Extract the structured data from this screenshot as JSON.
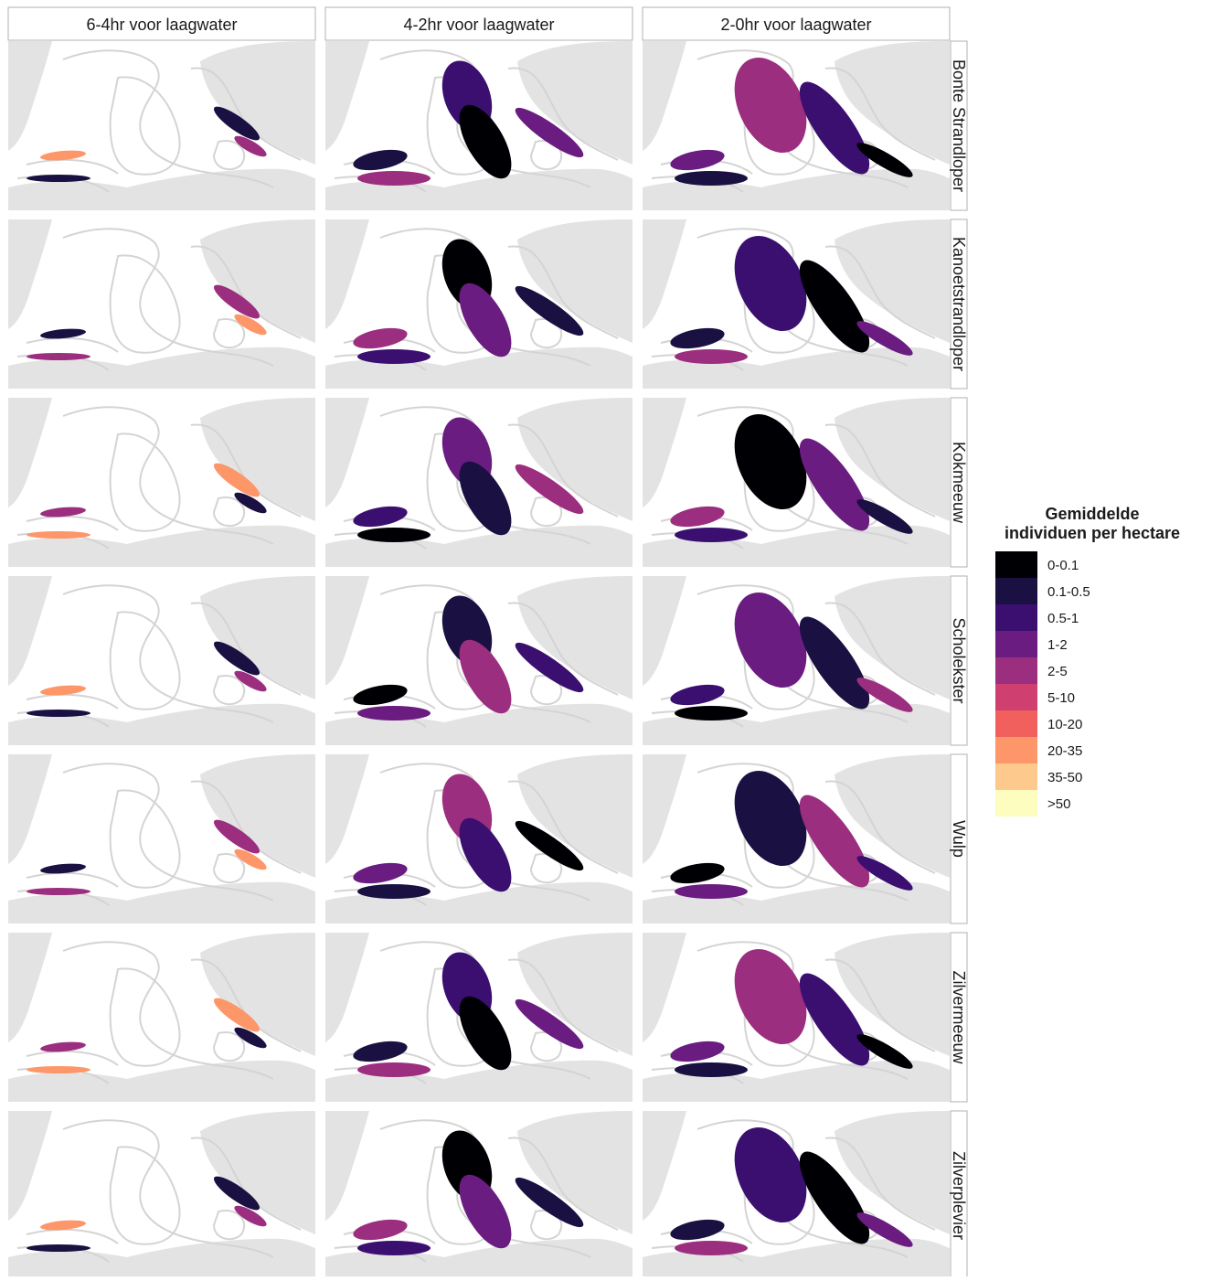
{
  "columns": [
    "6-4hr voor laagwater",
    "4-2hr voor laagwater",
    "2-0hr voor laagwater"
  ],
  "rows": [
    "Bonte Strandloper",
    "Kanoetstrandloper",
    "Kokmeeuw",
    "Scholekster",
    "Wulp",
    "Zilvermeeuw",
    "Zilverplevier"
  ],
  "legend": {
    "title": [
      "Gemiddelde",
      "individuen per hectare"
    ],
    "items": [
      {
        "label": "0-0.1",
        "color": "#000004"
      },
      {
        "label": "0.1-0.5",
        "color": "#1a1042"
      },
      {
        "label": "0.5-1",
        "color": "#3b0f70"
      },
      {
        "label": "1-2",
        "color": "#6a1c80"
      },
      {
        "label": "2-5",
        "color": "#9c2e7f"
      },
      {
        "label": "5-10",
        "color": "#cf4070"
      },
      {
        "label": "10-20",
        "color": "#f1605d"
      },
      {
        "label": "20-35",
        "color": "#fd9668"
      },
      {
        "label": "35-50",
        "color": "#fec98c"
      },
      {
        "label": ">50",
        "color": "#fcfdbf"
      }
    ]
  }
}
